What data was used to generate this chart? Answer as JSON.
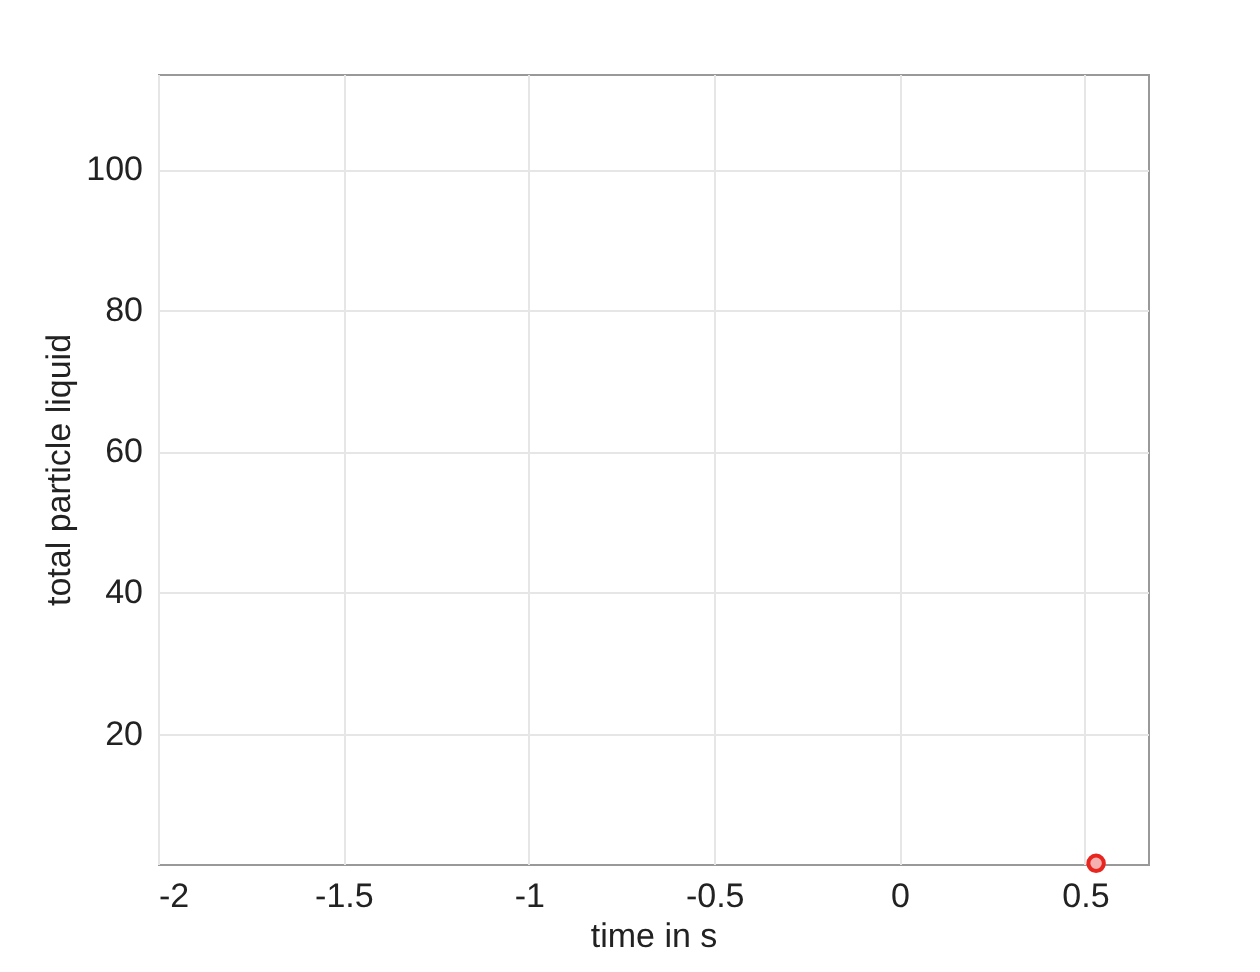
{
  "chart_data": {
    "type": "scatter",
    "xlabel": "time in s",
    "ylabel": "total particle liquid",
    "x": [
      0.53
    ],
    "series": [
      {
        "color": "#e8261f",
        "values": [
          1.6
        ]
      }
    ],
    "xlim": [
      -2,
      0.67
    ],
    "xticks": [
      -2,
      -1.5,
      -1,
      -0.5,
      0,
      0.5
    ],
    "ylim": [
      1.5,
      113.5
    ],
    "yticks": [
      20,
      40,
      60,
      80,
      100
    ],
    "grid": true,
    "marker": "circle"
  }
}
